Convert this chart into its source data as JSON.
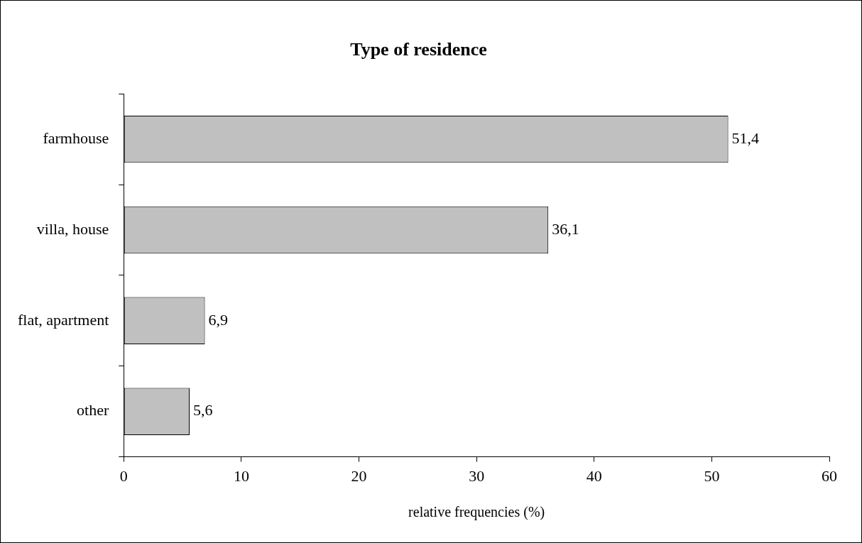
{
  "chart_data": {
    "type": "bar",
    "orientation": "horizontal",
    "title": "Type of residence",
    "xlabel": "relative frequencies (%)",
    "categories": [
      "farmhouse",
      "villa, house",
      "flat, apartment",
      "other"
    ],
    "values": [
      51.4,
      36.1,
      6.9,
      5.6
    ],
    "value_labels": [
      "51,4",
      "36,1",
      "6,9",
      "5,6"
    ],
    "color": "#c0c0c0",
    "xlim": [
      0,
      60
    ],
    "xticks": [
      0,
      10,
      20,
      30,
      40,
      50,
      60
    ],
    "grid": false,
    "legend": false
  }
}
